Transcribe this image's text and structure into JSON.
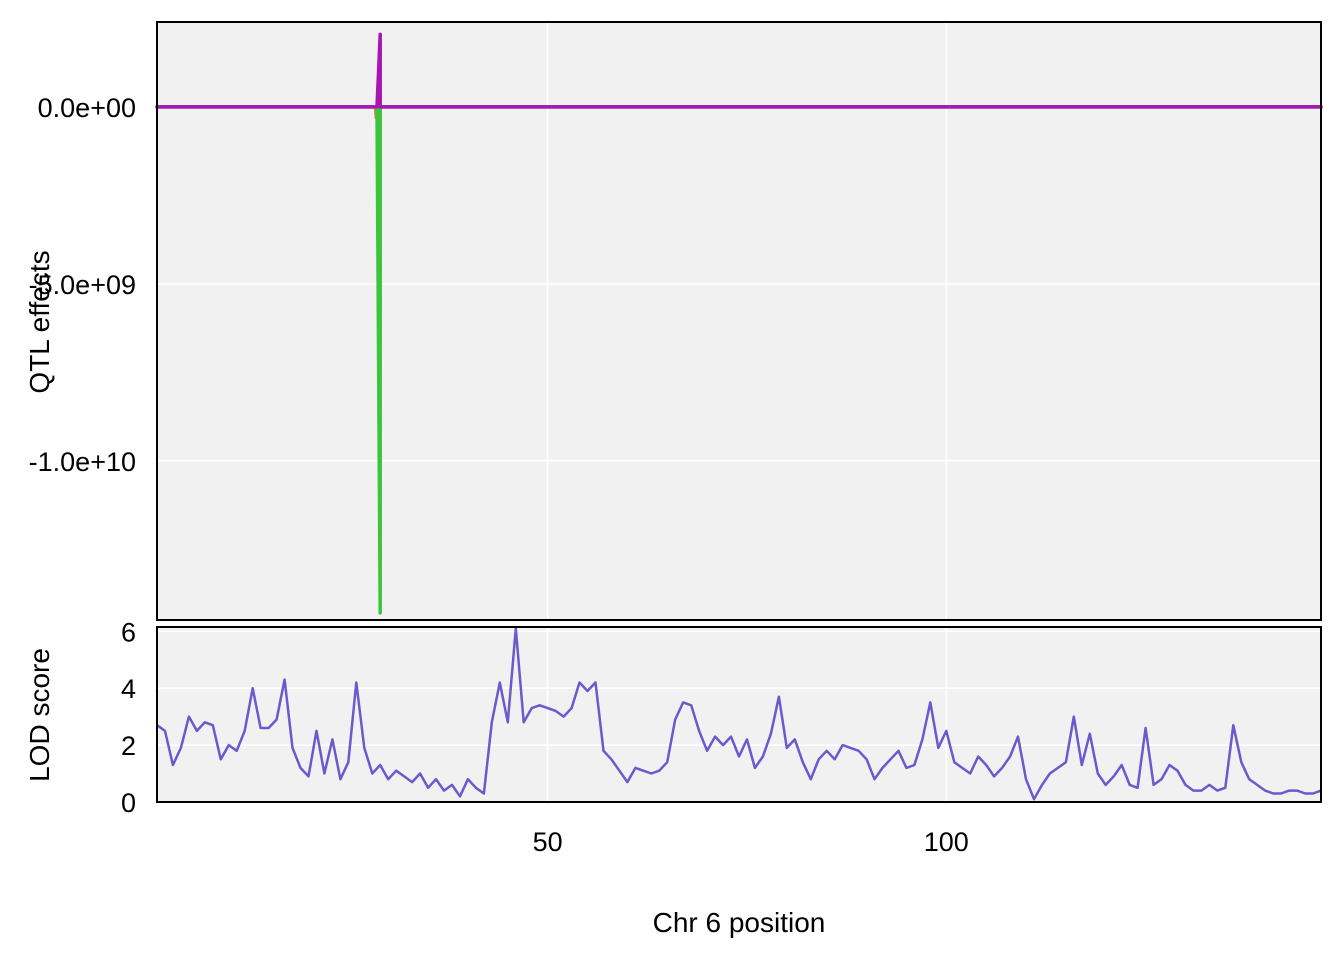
{
  "chart_data": [
    {
      "type": "line",
      "panel": "top",
      "ylabel": "QTL effects",
      "xlim": [
        1,
        147
      ],
      "ylim": [
        -14500000000,
        2400000000
      ],
      "yticks": [
        {
          "value": 0,
          "label": "0.0e+00"
        },
        {
          "value": -5000000000,
          "label": "-5.0e+09"
        },
        {
          "value": -10000000000,
          "label": "-1.0e+10"
        }
      ],
      "grid": true,
      "legend": "none",
      "series": [
        {
          "color": "#e8845c",
          "x": [
            1,
            28.4,
            28.5,
            28.6,
            28.7,
            147
          ],
          "y": [
            0,
            0,
            -300000000,
            0,
            0,
            0
          ]
        },
        {
          "color": "#3dc43d",
          "x": [
            1,
            28.6,
            29.0,
            29.0,
            29.2,
            147
          ],
          "y": [
            0,
            0,
            -14300000000,
            0,
            0,
            0
          ]
        },
        {
          "color": "#a914b5",
          "x": [
            1,
            28.6,
            29.0,
            29.0,
            29.2,
            147
          ],
          "y": [
            0,
            0,
            2050000000,
            0,
            0,
            0
          ]
        }
      ]
    },
    {
      "type": "line",
      "panel": "bottom",
      "xlabel": "Chr 6 position",
      "ylabel": "LOD score",
      "xlim": [
        1,
        147
      ],
      "ylim": [
        0,
        6.15
      ],
      "xticks": [
        {
          "value": 50,
          "label": "50"
        },
        {
          "value": 100,
          "label": "100"
        }
      ],
      "yticks": [
        {
          "value": 0,
          "label": "0"
        },
        {
          "value": 2,
          "label": "2"
        },
        {
          "value": 4,
          "label": "4"
        },
        {
          "value": 6,
          "label": "6"
        }
      ],
      "grid": true,
      "legend": "none",
      "series": [
        {
          "color": "#6a5acd",
          "x": [
            1,
            2,
            3,
            4,
            5,
            6,
            7,
            8,
            9,
            10,
            11,
            12,
            13,
            14,
            15,
            16,
            17,
            18,
            19,
            20,
            21,
            22,
            23,
            24,
            25,
            26,
            27,
            28,
            29,
            30,
            31,
            32,
            33,
            34,
            35,
            36,
            37,
            38,
            39,
            40,
            41,
            42,
            43,
            44,
            45,
            46,
            47,
            48,
            49,
            50,
            51,
            52,
            53,
            54,
            55,
            56,
            57,
            58,
            59,
            60,
            61,
            62,
            63,
            64,
            65,
            66,
            67,
            68,
            69,
            70,
            71,
            72,
            73,
            74,
            75,
            76,
            77,
            78,
            79,
            80,
            81,
            82,
            83,
            84,
            85,
            86,
            87,
            88,
            89,
            90,
            91,
            92,
            93,
            94,
            95,
            96,
            97,
            98,
            99,
            100,
            101,
            102,
            103,
            104,
            105,
            106,
            107,
            108,
            109,
            110,
            111,
            112,
            113,
            114,
            115,
            116,
            117,
            118,
            119,
            120,
            121,
            122,
            123,
            124,
            125,
            126,
            127,
            128,
            129,
            130,
            131,
            132,
            133,
            134,
            135,
            136,
            137,
            138,
            139,
            140,
            141,
            142,
            143,
            144,
            145,
            146,
            147
          ],
          "y": [
            2.7,
            2.5,
            1.3,
            1.9,
            3.0,
            2.5,
            2.8,
            2.7,
            1.5,
            2.0,
            1.8,
            2.5,
            4.0,
            2.6,
            2.6,
            2.9,
            4.3,
            1.9,
            1.2,
            0.9,
            2.5,
            1.0,
            2.2,
            0.8,
            1.4,
            4.2,
            1.9,
            1.0,
            1.3,
            0.8,
            1.1,
            0.9,
            0.7,
            1.0,
            0.5,
            0.8,
            0.4,
            0.6,
            0.2,
            0.8,
            0.5,
            0.3,
            2.8,
            4.2,
            2.8,
            6.1,
            2.8,
            3.3,
            3.4,
            3.3,
            3.2,
            3.0,
            3.3,
            4.2,
            3.9,
            4.2,
            1.8,
            1.5,
            1.1,
            0.7,
            1.2,
            1.1,
            1.0,
            1.1,
            1.4,
            2.9,
            3.5,
            3.4,
            2.5,
            1.8,
            2.3,
            2.0,
            2.3,
            1.6,
            2.2,
            1.2,
            1.6,
            2.4,
            3.7,
            1.9,
            2.2,
            1.4,
            0.8,
            1.5,
            1.8,
            1.5,
            2.0,
            1.9,
            1.8,
            1.5,
            0.8,
            1.2,
            1.5,
            1.8,
            1.2,
            1.3,
            2.2,
            3.5,
            1.9,
            2.5,
            1.4,
            1.2,
            1.0,
            1.6,
            1.3,
            0.9,
            1.2,
            1.6,
            2.3,
            0.8,
            0.1,
            0.6,
            1.0,
            1.2,
            1.4,
            3.0,
            1.3,
            2.4,
            1.0,
            0.6,
            0.9,
            1.3,
            0.6,
            0.5,
            2.6,
            0.6,
            0.8,
            1.3,
            1.1,
            0.6,
            0.4,
            0.4,
            0.6,
            0.4,
            0.5,
            2.7,
            1.4,
            0.8,
            0.6,
            0.4,
            0.3,
            0.3,
            0.4,
            0.4,
            0.3,
            0.3,
            0.4
          ]
        }
      ]
    }
  ]
}
